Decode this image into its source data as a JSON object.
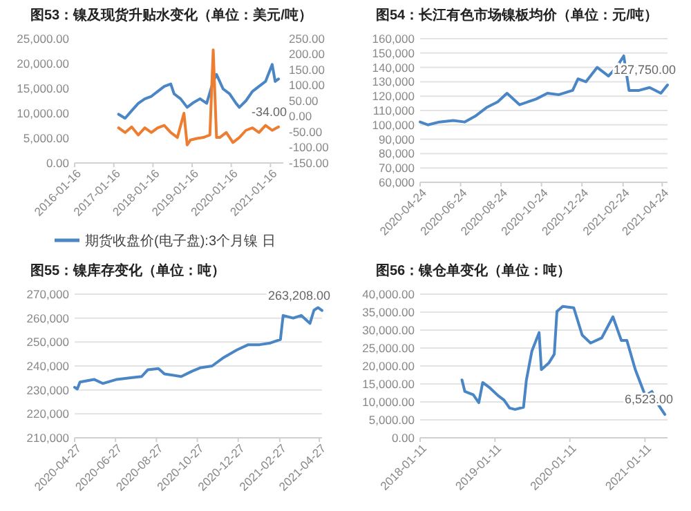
{
  "chart_data": [
    {
      "type": "line",
      "title": "图53：镍及现货升贴水变化（单位：美元/吨）",
      "legend": "bottom",
      "grid": false,
      "xlim": [
        "2016-01-16",
        "2021-05-16"
      ],
      "xticks": [
        "2016-01-16",
        "2017-01-16",
        "2018-01-16",
        "2019-01-16",
        "2020-01-16",
        "2021-01-16"
      ],
      "ylim": [
        0,
        25000
      ],
      "yticks": [
        {
          "value": 0,
          "label": "0.00"
        },
        {
          "value": 5000,
          "label": "5,000.00"
        },
        {
          "value": 10000,
          "label": "10,000.00"
        },
        {
          "value": 15000,
          "label": "15,000.00"
        },
        {
          "value": 20000,
          "label": "20,000.00"
        },
        {
          "value": 25000,
          "label": "25,000.00"
        }
      ],
      "y2lim": [
        -150,
        250
      ],
      "y2ticks": [
        {
          "value": -150,
          "label": "-150.00"
        },
        {
          "value": -100,
          "label": "-100.00"
        },
        {
          "value": -50,
          "label": "-50.00"
        },
        {
          "value": 0,
          "label": "0.00"
        },
        {
          "value": 50,
          "label": "50.00"
        },
        {
          "value": 100,
          "label": "100.00"
        },
        {
          "value": 150,
          "label": "150.00"
        },
        {
          "value": 200,
          "label": "200.00"
        },
        {
          "value": 250,
          "label": "250.00"
        }
      ],
      "series": [
        {
          "name": "期货收盘价(电子盘):3个月镍 日",
          "color": "#4a86c5",
          "x": [
            "2017-03",
            "2017-05",
            "2017-07",
            "2017-09",
            "2017-11",
            "2018-01",
            "2018-03",
            "2018-05",
            "2018-07",
            "2018-08",
            "2018-10",
            "2018-12",
            "2019-02",
            "2019-04",
            "2019-06",
            "2019-08",
            "2019-09",
            "2019-11",
            "2020-01",
            "2020-03",
            "2020-04",
            "2020-06",
            "2020-08",
            "2020-10",
            "2020-12",
            "2021-02",
            "2021-03",
            "2021-04"
          ],
          "values": [
            9800,
            9000,
            10500,
            12000,
            12900,
            13400,
            14400,
            15400,
            15900,
            13900,
            12900,
            11200,
            12200,
            12900,
            12000,
            16400,
            17800,
            14900,
            13900,
            12000,
            11200,
            12500,
            14400,
            15400,
            16400,
            19800,
            16400,
            16900
          ]
        },
        {
          "color": "#ed7d31",
          "axis": "y2",
          "x": [
            "2017-03",
            "2017-05",
            "2017-07",
            "2017-09",
            "2017-11",
            "2018-01",
            "2018-03",
            "2018-05",
            "2018-07",
            "2018-09",
            "2018-11",
            "2018-12",
            "2019-01",
            "2019-03",
            "2019-05",
            "2019-07",
            "2019-08",
            "2019-09",
            "2019-10",
            "2019-12",
            "2020-02",
            "2020-04",
            "2020-06",
            "2020-08",
            "2020-10",
            "2020-12",
            "2021-02",
            "2021-04"
          ],
          "values": [
            -37,
            -52,
            -34,
            -60,
            -37,
            -52,
            -37,
            -29,
            -52,
            -68,
            10,
            -92,
            -76,
            -71,
            -68,
            -60,
            214,
            -68,
            -68,
            -52,
            -84,
            -68,
            -45,
            -37,
            -52,
            -29,
            -45,
            -34
          ],
          "value_labels": [
            null,
            null,
            null,
            null,
            null,
            null,
            null,
            null,
            null,
            null,
            null,
            null,
            null,
            null,
            null,
            null,
            null,
            null,
            null,
            null,
            null,
            null,
            null,
            null,
            null,
            null,
            null,
            "-34.00"
          ]
        }
      ]
    },
    {
      "type": "line",
      "title": "图54：长江有色市场镍板均价（单位：元/吨）",
      "grid": "y",
      "xlim": [
        "2020-04-24",
        "2021-05-02"
      ],
      "xticks": [
        "2020-04-24",
        "2020-06-24",
        "2020-08-24",
        "2020-10-24",
        "2020-12-24",
        "2021-02-24",
        "2021-04-24"
      ],
      "ylim": [
        60000,
        160000
      ],
      "yticks": [
        {
          "value": 60000,
          "label": "60,000"
        },
        {
          "value": 70000,
          "label": "70,000"
        },
        {
          "value": 80000,
          "label": "80,000"
        },
        {
          "value": 90000,
          "label": "90,000"
        },
        {
          "value": 100000,
          "label": "100,000"
        },
        {
          "value": 110000,
          "label": "110,000"
        },
        {
          "value": 120000,
          "label": "120,000"
        },
        {
          "value": 130000,
          "label": "130,000"
        },
        {
          "value": 140000,
          "label": "140,000"
        },
        {
          "value": 150000,
          "label": "150,000"
        },
        {
          "value": 160000,
          "label": "160,000"
        }
      ],
      "series": [
        {
          "color": "#4a86c5",
          "x": [
            "2020-04-24",
            "2020-05-06",
            "2020-05-23",
            "2020-06-13",
            "2020-06-30",
            "2020-07-16",
            "2020-08-02",
            "2020-08-19",
            "2020-09-02",
            "2020-09-21",
            "2020-10-16",
            "2020-11-02",
            "2020-11-19",
            "2020-12-10",
            "2020-12-18",
            "2020-12-30",
            "2021-01-16",
            "2021-02-02",
            "2021-02-14",
            "2021-02-25",
            "2021-03-05",
            "2021-03-20",
            "2021-04-05",
            "2021-04-22",
            "2021-05-02"
          ],
          "values": [
            102000,
            100000,
            102000,
            103000,
            102000,
            106000,
            112000,
            116000,
            122000,
            114000,
            118000,
            122000,
            121000,
            124000,
            132000,
            130000,
            140000,
            134000,
            140000,
            148000,
            124000,
            124000,
            126000,
            122000,
            127750
          ],
          "value_labels": [
            null,
            null,
            null,
            null,
            null,
            null,
            null,
            null,
            null,
            null,
            null,
            null,
            null,
            null,
            null,
            null,
            null,
            null,
            null,
            null,
            null,
            null,
            null,
            null,
            "127,750.00"
          ]
        }
      ]
    },
    {
      "type": "line",
      "title": "图55：镍库存变化（单位：吨）",
      "grid": "y",
      "xlim": [
        "2020-04-27",
        "2021-05-01"
      ],
      "xticks": [
        "2020-04-27",
        "2020-06-27",
        "2020-08-27",
        "2020-10-27",
        "2020-12-27",
        "2021-02-27",
        "2021-04-27"
      ],
      "ylim": [
        210000,
        270000
      ],
      "yticks": [
        {
          "value": 210000,
          "label": "210,000"
        },
        {
          "value": 220000,
          "label": "220,000"
        },
        {
          "value": 230000,
          "label": "230,000"
        },
        {
          "value": 240000,
          "label": "240,000"
        },
        {
          "value": 250000,
          "label": "250,000"
        },
        {
          "value": 260000,
          "label": "260,000"
        },
        {
          "value": 270000,
          "label": "270,000"
        }
      ],
      "series": [
        {
          "color": "#4a86c5",
          "x": [
            "2020-04-27",
            "2020-05-01",
            "2020-05-05",
            "2020-05-26",
            "2020-06-08",
            "2020-06-29",
            "2020-07-20",
            "2020-08-05",
            "2020-08-14",
            "2020-08-30",
            "2020-09-08",
            "2020-10-03",
            "2020-10-19",
            "2020-11-01",
            "2020-11-18",
            "2020-12-04",
            "2020-12-25",
            "2021-01-11",
            "2021-01-28",
            "2021-02-13",
            "2021-02-28",
            "2021-03-04",
            "2021-03-19",
            "2021-03-31",
            "2021-04-13",
            "2021-04-19",
            "2021-04-25",
            "2021-05-01"
          ],
          "values": [
            231100,
            230400,
            233300,
            234400,
            232700,
            234400,
            235100,
            235600,
            238400,
            238900,
            236700,
            235600,
            237800,
            239300,
            240000,
            243300,
            246700,
            248900,
            248900,
            249600,
            251100,
            261100,
            260000,
            261100,
            257800,
            263300,
            264400,
            263208
          ],
          "value_labels": [
            null,
            null,
            null,
            null,
            null,
            null,
            null,
            null,
            null,
            null,
            null,
            null,
            null,
            null,
            null,
            null,
            null,
            null,
            null,
            null,
            null,
            null,
            null,
            null,
            null,
            null,
            null,
            "263,208.00"
          ]
        }
      ]
    },
    {
      "type": "line",
      "title": "图56：镍仓单变化（单位：吨）",
      "grid": "y",
      "xlim": [
        "2018-01-11",
        "2021-05-01"
      ],
      "xticks": [
        "2018-01-11",
        "2019-01-11",
        "2020-01-11",
        "2021-01-11"
      ],
      "ylim": [
        0,
        40000
      ],
      "yticks": [
        {
          "value": 0,
          "label": "0.00"
        },
        {
          "value": 5000,
          "label": "5,000.00"
        },
        {
          "value": 10000,
          "label": "10,000.00"
        },
        {
          "value": 15000,
          "label": "15,000.00"
        },
        {
          "value": 20000,
          "label": "20,000.00"
        },
        {
          "value": 25000,
          "label": "25,000.00"
        },
        {
          "value": 30000,
          "label": "30,000.00"
        },
        {
          "value": 35000,
          "label": "35,000.00"
        },
        {
          "value": 40000,
          "label": "40,000.00"
        }
      ],
      "series": [
        {
          "color": "#4a86c5",
          "x": [
            "2018-08-03",
            "2018-08-17",
            "2018-09-27",
            "2018-10-24",
            "2018-11-12",
            "2018-12-17",
            "2019-01-27",
            "2019-02-24",
            "2019-03-23",
            "2019-04-19",
            "2019-05-30",
            "2019-06-13",
            "2019-07-10",
            "2019-08-14",
            "2019-08-25",
            "2019-09-30",
            "2019-10-27",
            "2019-11-09",
            "2019-12-07",
            "2020-01-30",
            "2020-03-11",
            "2020-04-21",
            "2020-06-14",
            "2020-08-08",
            "2020-09-18",
            "2020-10-15",
            "2020-11-25",
            "2021-01-13",
            "2021-02-14",
            "2021-03-14",
            "2021-04-18"
          ],
          "values": [
            16100,
            12900,
            12000,
            9800,
            15400,
            13900,
            11700,
            10500,
            8300,
            7900,
            8500,
            16100,
            24200,
            29300,
            19000,
            20800,
            23300,
            35200,
            36600,
            36200,
            28600,
            26400,
            27800,
            33700,
            27100,
            27100,
            19000,
            11700,
            12900,
            9500,
            6523
          ],
          "value_labels": [
            null,
            null,
            null,
            null,
            null,
            null,
            null,
            null,
            null,
            null,
            null,
            null,
            null,
            null,
            null,
            null,
            null,
            null,
            null,
            null,
            null,
            null,
            null,
            null,
            null,
            null,
            null,
            null,
            null,
            null,
            "6,523.00"
          ]
        }
      ]
    }
  ]
}
